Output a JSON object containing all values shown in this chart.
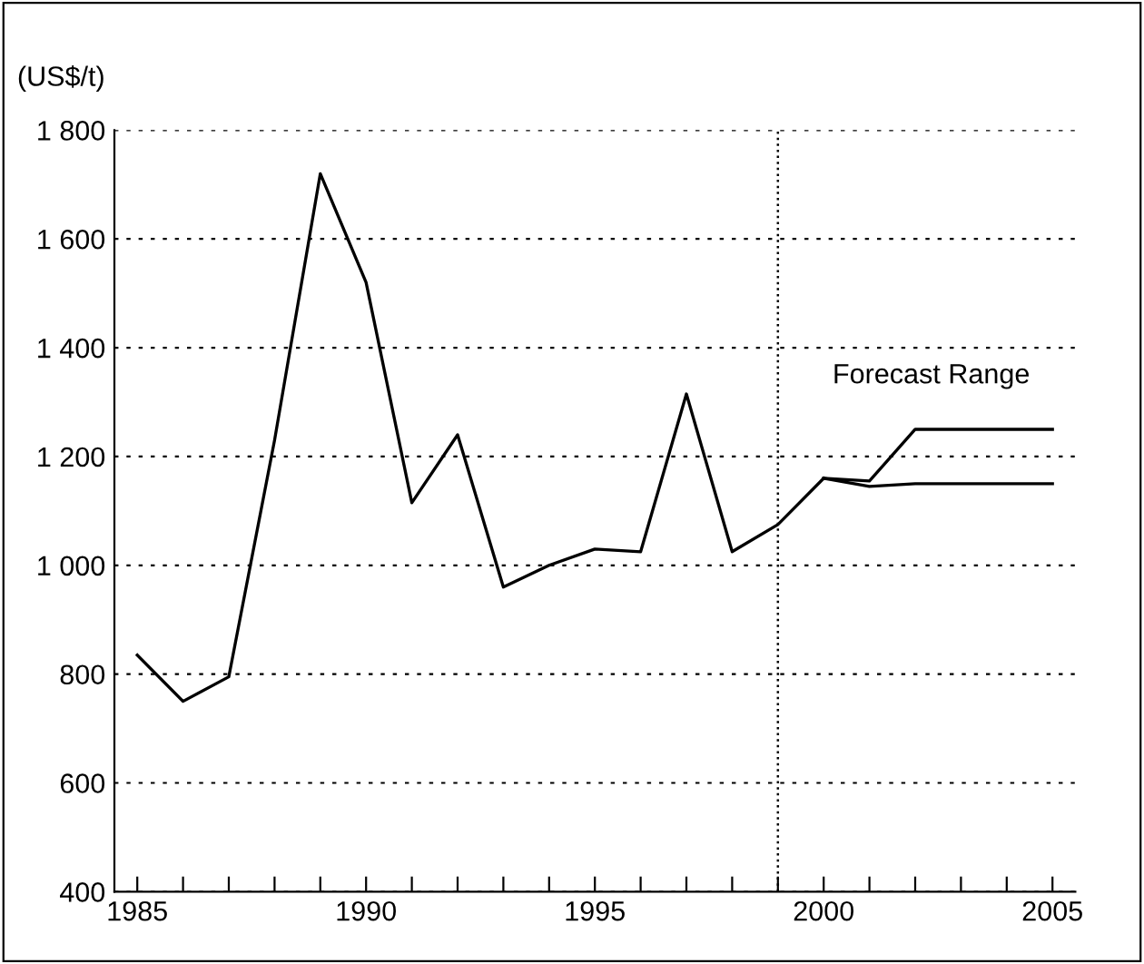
{
  "chart_data": {
    "type": "line",
    "ylabel": "(US$/t)",
    "series": [
      {
        "color": "#000000",
        "x": [
          1985,
          1986,
          1987,
          1988,
          1989,
          1990,
          1991,
          1992,
          1993,
          1994,
          1995,
          1996,
          1997,
          1998,
          1999,
          2000
        ],
        "values": [
          835,
          750,
          795,
          1230,
          1720,
          1520,
          1115,
          1240,
          960,
          1000,
          1030,
          1025,
          1315,
          1025,
          1075,
          1160
        ]
      },
      {
        "color": "#000000",
        "x": [
          2000,
          2001,
          2002,
          2003,
          2004,
          2005
        ],
        "values": [
          1160,
          1155,
          1250,
          1250,
          1250,
          1250
        ]
      },
      {
        "color": "#000000",
        "x": [
          2000,
          2001,
          2002,
          2003,
          2004,
          2005
        ],
        "values": [
          1160,
          1145,
          1150,
          1150,
          1150,
          1150
        ]
      }
    ],
    "annotations": [
      "Forecast Range"
    ],
    "xlim": [
      1984.5,
      2005.5
    ],
    "ylim": [
      400,
      1800
    ],
    "xticks": [
      1985,
      {
        "value": 1986,
        "label": null
      },
      {
        "value": 1987,
        "label": null
      },
      {
        "value": 1988,
        "label": null
      },
      {
        "value": 1989,
        "label": null
      },
      1990,
      {
        "value": 1991,
        "label": null
      },
      {
        "value": 1992,
        "label": null
      },
      {
        "value": 1993,
        "label": null
      },
      {
        "value": 1994,
        "label": null
      },
      1995,
      {
        "value": 1996,
        "label": null
      },
      {
        "value": 1997,
        "label": null
      },
      {
        "value": 1998,
        "label": null
      },
      {
        "value": 1999,
        "label": null
      },
      2000,
      {
        "value": 2001,
        "label": null
      },
      {
        "value": 2002,
        "label": null
      },
      {
        "value": 2003,
        "label": null
      },
      {
        "value": 2004,
        "label": null
      },
      2005
    ],
    "yticks": [
      {
        "value": 400,
        "label": "400"
      },
      {
        "value": 600,
        "label": "600"
      },
      {
        "value": 800,
        "label": "800"
      },
      {
        "value": 1000,
        "label": "1 000"
      },
      {
        "value": 1200,
        "label": "1 200"
      },
      {
        "value": 1400,
        "label": "1 400"
      },
      {
        "value": 1600,
        "label": "1 600"
      },
      {
        "value": 1800,
        "label": "1 800"
      }
    ],
    "ref_lines": [
      {
        "axis": "x",
        "value": 1999,
        "color": "#000000",
        "line_style": "dotted"
      }
    ],
    "grid": "y",
    "marker": "none",
    "line_style": "solid",
    "legend": false
  }
}
